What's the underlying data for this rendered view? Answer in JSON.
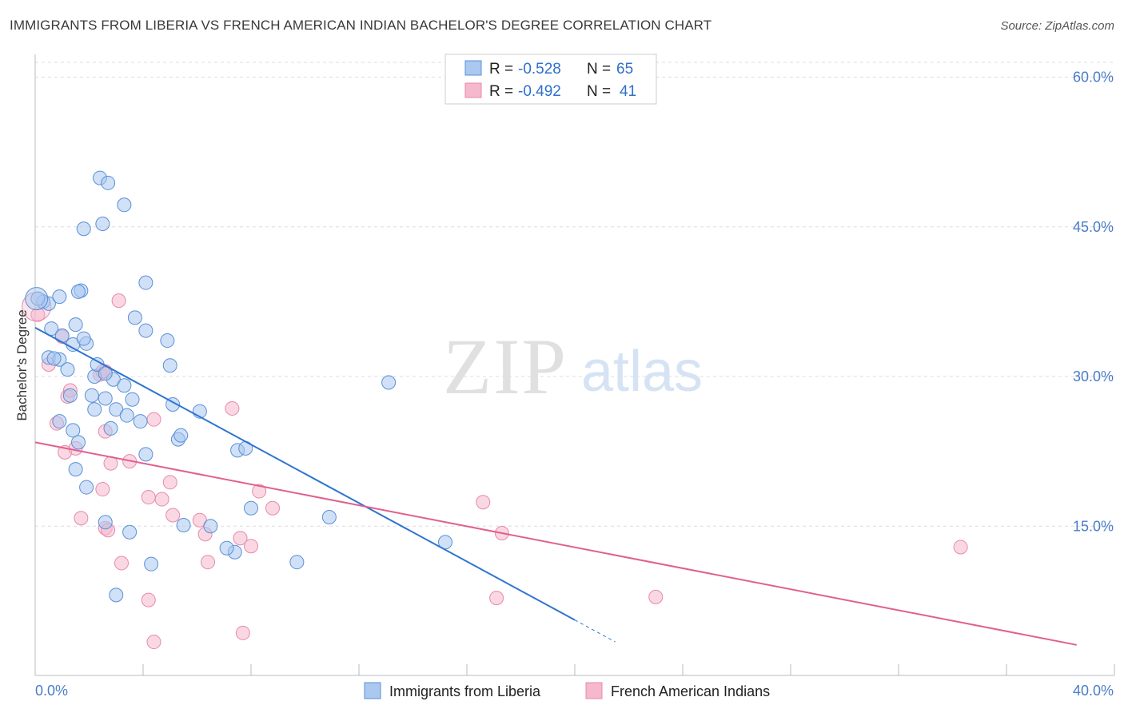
{
  "title": "IMMIGRANTS FROM LIBERIA VS FRENCH AMERICAN INDIAN BACHELOR'S DEGREE CORRELATION CHART",
  "source": "Source: ZipAtlas.com",
  "watermark": {
    "zip": "ZIP",
    "atlas": "atlas"
  },
  "colors": {
    "blue_fill": "#aac8f0",
    "blue_stroke": "#5b8fd6",
    "blue_line": "#2f74d0",
    "pink_fill": "#f5b8cc",
    "pink_stroke": "#e889a8",
    "pink_line": "#e0608f",
    "axis_text": "#4a7cc7",
    "grid": "#dddddd"
  },
  "legend": {
    "rows": [
      {
        "r_label": "R = ",
        "r_value": "-0.528",
        "n_label": "N = ",
        "n_value": "65"
      },
      {
        "r_label": "R = ",
        "r_value": "-0.492",
        "n_label": "N = ",
        "n_value": "41"
      }
    ]
  },
  "chart_data": {
    "type": "scatter",
    "xlabel": "",
    "ylabel": "Bachelor's Degree",
    "xlim": [
      0,
      40
    ],
    "ylim": [
      2.5,
      62.5
    ],
    "x_tick_labels": [
      "0.0%",
      "40.0%"
    ],
    "y_ticks": [
      15,
      30,
      45,
      60
    ],
    "y_tick_labels": [
      "15.0%",
      "30.0%",
      "45.0%",
      "60.0%"
    ],
    "grid": true,
    "legend_position": "top-center",
    "series": [
      {
        "name": "Immigrants from Liberia",
        "color": "#5b8fd6",
        "points": [
          [
            0.3,
            37.5
          ],
          [
            0.5,
            37.3
          ],
          [
            0.9,
            38.0
          ],
          [
            1.7,
            38.6
          ],
          [
            4.1,
            39.4
          ],
          [
            0.6,
            34.8
          ],
          [
            1.0,
            34.1
          ],
          [
            1.4,
            33.2
          ],
          [
            1.9,
            33.3
          ],
          [
            0.5,
            31.9
          ],
          [
            0.9,
            31.7
          ],
          [
            1.2,
            30.7
          ],
          [
            2.2,
            30.0
          ],
          [
            2.9,
            29.7
          ],
          [
            3.3,
            29.1
          ],
          [
            2.1,
            28.1
          ],
          [
            2.6,
            27.8
          ],
          [
            3.0,
            26.7
          ],
          [
            3.4,
            26.1
          ],
          [
            0.9,
            25.5
          ],
          [
            1.4,
            24.6
          ],
          [
            1.6,
            23.4
          ],
          [
            2.8,
            24.8
          ],
          [
            4.1,
            22.2
          ],
          [
            5.3,
            23.7
          ],
          [
            7.5,
            22.6
          ],
          [
            7.8,
            22.8
          ],
          [
            1.5,
            20.7
          ],
          [
            1.9,
            18.9
          ],
          [
            4.9,
            33.6
          ],
          [
            5.0,
            31.1
          ],
          [
            3.6,
            27.7
          ],
          [
            3.7,
            35.9
          ],
          [
            4.1,
            34.6
          ],
          [
            2.3,
            31.2
          ],
          [
            2.4,
            49.9
          ],
          [
            2.7,
            49.4
          ],
          [
            3.3,
            47.2
          ],
          [
            2.5,
            45.3
          ],
          [
            1.8,
            44.8
          ],
          [
            1.6,
            38.5
          ],
          [
            1.5,
            35.2
          ],
          [
            1.8,
            33.8
          ],
          [
            5.1,
            27.2
          ],
          [
            5.4,
            24.1
          ],
          [
            6.1,
            26.5
          ],
          [
            8.0,
            16.8
          ],
          [
            9.7,
            11.4
          ],
          [
            10.9,
            15.9
          ],
          [
            13.1,
            29.4
          ],
          [
            15.2,
            13.4
          ],
          [
            5.5,
            15.1
          ],
          [
            6.5,
            15.0
          ],
          [
            7.4,
            12.4
          ],
          [
            7.1,
            12.8
          ],
          [
            2.6,
            15.4
          ],
          [
            3.5,
            14.4
          ],
          [
            4.3,
            11.2
          ],
          [
            3.0,
            8.1
          ],
          [
            0.1,
            37.8
          ],
          [
            0.7,
            31.8
          ],
          [
            2.6,
            30.3
          ],
          [
            1.3,
            28.1
          ],
          [
            3.9,
            25.5
          ],
          [
            2.2,
            26.7
          ]
        ]
      },
      {
        "name": "French American Indians",
        "color": "#e889a8",
        "points": [
          [
            0.1,
            36.2
          ],
          [
            0.5,
            31.2
          ],
          [
            1.0,
            34.0
          ],
          [
            3.1,
            37.6
          ],
          [
            0.8,
            25.3
          ],
          [
            1.2,
            28.0
          ],
          [
            1.3,
            28.6
          ],
          [
            2.4,
            30.2
          ],
          [
            2.6,
            30.5
          ],
          [
            1.1,
            22.4
          ],
          [
            1.5,
            22.8
          ],
          [
            2.6,
            24.5
          ],
          [
            2.8,
            21.3
          ],
          [
            3.5,
            21.5
          ],
          [
            4.4,
            25.7
          ],
          [
            2.5,
            18.7
          ],
          [
            4.2,
            17.9
          ],
          [
            4.7,
            17.7
          ],
          [
            5.1,
            16.1
          ],
          [
            5.0,
            19.4
          ],
          [
            6.1,
            15.6
          ],
          [
            6.3,
            14.2
          ],
          [
            7.3,
            26.8
          ],
          [
            8.3,
            18.5
          ],
          [
            8.8,
            16.8
          ],
          [
            7.6,
            13.8
          ],
          [
            8.0,
            13.0
          ],
          [
            1.7,
            15.8
          ],
          [
            2.6,
            14.8
          ],
          [
            2.7,
            14.6
          ],
          [
            3.2,
            11.3
          ],
          [
            4.2,
            7.6
          ],
          [
            4.4,
            3.4
          ],
          [
            7.7,
            4.3
          ],
          [
            6.4,
            11.4
          ],
          [
            16.6,
            17.4
          ],
          [
            17.3,
            14.3
          ],
          [
            17.1,
            7.8
          ],
          [
            23.0,
            7.9
          ],
          [
            34.3,
            12.9
          ],
          [
            2.5,
            30.5
          ]
        ]
      }
    ],
    "trend_lines": [
      {
        "series": "Immigrants from Liberia",
        "x": [
          0,
          20
        ],
        "y": [
          34.9,
          5.6
        ],
        "dashed_to": [
          21.5,
          3.4
        ]
      },
      {
        "series": "French American Indians",
        "x": [
          0,
          38.6
        ],
        "y": [
          23.4,
          3.1
        ]
      }
    ]
  },
  "bottom_legend": [
    {
      "label": "Immigrants from Liberia"
    },
    {
      "label": "French American Indians"
    }
  ]
}
